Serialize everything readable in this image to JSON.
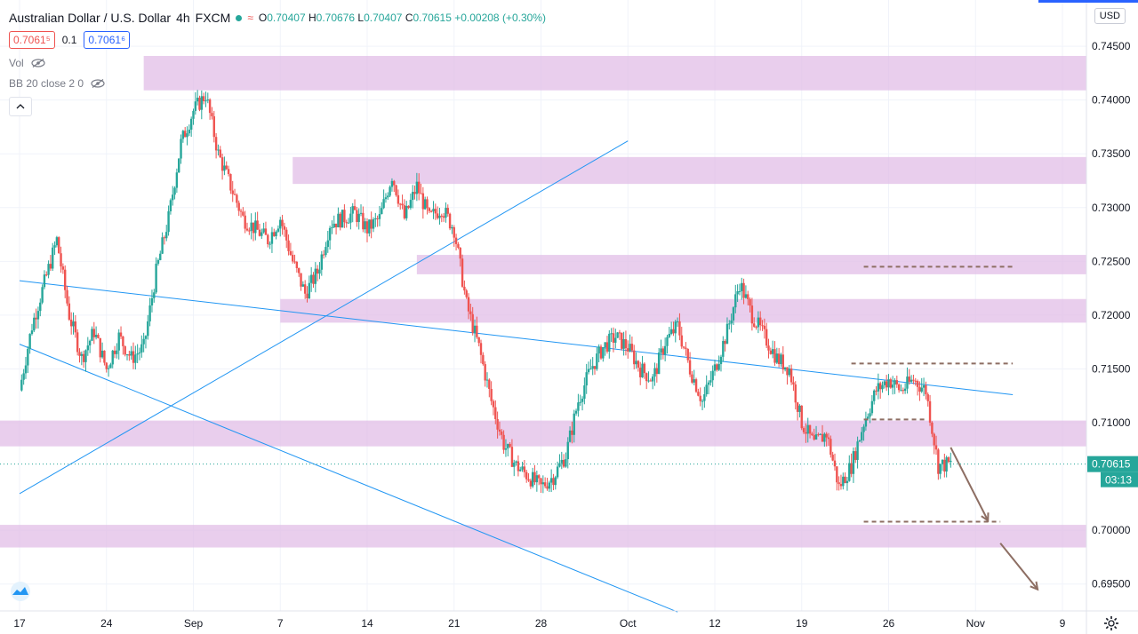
{
  "header": {
    "symbol_title": "Australian Dollar / U.S. Dollar",
    "interval": "4h",
    "exchange": "FXCM",
    "wave_icon": "≈",
    "open_label": "O",
    "open": "0.70407",
    "high_label": "H",
    "high": "0.70676",
    "low_label": "L",
    "low": "0.70407",
    "close_label": "C",
    "close": "0.70615",
    "change": "+0.00208 (+0.30%)"
  },
  "trade": {
    "sell_price": "0.7061⁵",
    "spread": "0.1",
    "buy_price": "0.7061⁶"
  },
  "indicators": [
    {
      "label": "Vol",
      "icon": "eye-off-icon"
    },
    {
      "label": "BB 20 close 2 0",
      "icon": "eye-off-icon"
    }
  ],
  "toolbar": {
    "collapse_icon": "chevron-up-icon",
    "currency": "USD",
    "logo_icon": "brand-logo-icon",
    "settings_icon": "gear-icon"
  },
  "colors": {
    "up": "#26a69a",
    "down": "#ef5350",
    "trendline": "#2196f3",
    "zone": "#e1bee7",
    "dashed": "#8d6e63",
    "arrow": "#8d6e63",
    "axis_text": "#131722"
  },
  "chart_data": {
    "type": "candlestick",
    "y_axis": {
      "position": "right",
      "ticks": [
        "0.74500",
        "0.74000",
        "0.73500",
        "0.73000",
        "0.72500",
        "0.72000",
        "0.71500",
        "0.71000",
        "0.70000",
        "0.69500"
      ],
      "range": [
        0.6925,
        0.7493
      ]
    },
    "x_axis": {
      "ticks": [
        "17",
        "24",
        "Sep",
        "7",
        "14",
        "21",
        "28",
        "Oct",
        "12",
        "19",
        "26",
        "Nov",
        "9"
      ],
      "range": [
        "2020-08-17",
        "2020-11-09"
      ]
    },
    "last_price": {
      "label": "0.70615",
      "value": 0.70615,
      "countdown": "03:13",
      "hidden_tick": "0.70500"
    },
    "grid": true,
    "zones": [
      {
        "from": "2020-08-27",
        "to": "right-edge",
        "low": 0.7409,
        "high": 0.7441
      },
      {
        "from": "2020-09-08",
        "to": "right-edge",
        "low": 0.7322,
        "high": 0.7347
      },
      {
        "from": "2020-09-18",
        "to": "right-edge",
        "low": 0.7238,
        "high": 0.7256
      },
      {
        "from": "2020-09-07",
        "to": "right-edge",
        "low": 0.7193,
        "high": 0.7215
      },
      {
        "from": "left-edge",
        "to": "right-edge",
        "low": 0.7078,
        "high": 0.7102
      },
      {
        "from": "left-edge",
        "to": "right-edge",
        "low": 0.6984,
        "high": 0.7005
      }
    ],
    "trendlines": [
      {
        "from": {
          "date": "2020-08-17",
          "price": 0.7232
        },
        "to": {
          "date": "2020-11-05",
          "price": 0.7126
        }
      },
      {
        "from": {
          "date": "2020-08-17",
          "price": 0.7173
        },
        "to": {
          "date": "2020-10-09",
          "price": 0.6924
        }
      },
      {
        "from": {
          "date": "2020-08-17",
          "price": 0.7034
        },
        "to": {
          "date": "2020-10-05",
          "price": 0.7362
        }
      }
    ],
    "levels": [
      {
        "from": "2020-10-24",
        "to": "2020-11-05",
        "price": 0.7245
      },
      {
        "from": "2020-10-23",
        "to": "2020-11-05",
        "price": 0.7155
      },
      {
        "from": "2020-10-24",
        "to": "2020-10-29",
        "price": 0.7103
      },
      {
        "from": "2020-10-24",
        "to": "2020-11-04",
        "price": 0.7008
      }
    ],
    "arrows": [
      {
        "from": {
          "date": "2020-10-31",
          "price": 0.7077
        },
        "to": {
          "date": "2020-11-03",
          "price": 0.7009
        }
      },
      {
        "from": {
          "date": "2020-11-04",
          "price": 0.6988
        },
        "to": {
          "date": "2020-11-07",
          "price": 0.6945
        }
      }
    ],
    "price_path": [
      [
        "2020-08-17",
        0.713
      ],
      [
        "2020-08-18",
        0.719
      ],
      [
        "2020-08-19",
        0.723
      ],
      [
        "2020-08-20",
        0.727
      ],
      [
        "2020-08-21",
        0.72
      ],
      [
        "2020-08-22",
        0.716
      ],
      [
        "2020-08-23",
        0.7185
      ],
      [
        "2020-08-24",
        0.715
      ],
      [
        "2020-08-25",
        0.718
      ],
      [
        "2020-08-26",
        0.716
      ],
      [
        "2020-08-27",
        0.717
      ],
      [
        "2020-08-28",
        0.724
      ],
      [
        "2020-08-29",
        0.729
      ],
      [
        "2020-08-30",
        0.736
      ],
      [
        "2020-08-31",
        0.739
      ],
      [
        "2020-09-01",
        0.7405
      ],
      [
        "2020-09-02",
        0.735
      ],
      [
        "2020-09-03",
        0.732
      ],
      [
        "2020-09-04",
        0.729
      ],
      [
        "2020-09-05",
        0.728
      ],
      [
        "2020-09-06",
        0.727
      ],
      [
        "2020-09-07",
        0.729
      ],
      [
        "2020-09-08",
        0.725
      ],
      [
        "2020-09-09",
        0.722
      ],
      [
        "2020-09-10",
        0.724
      ],
      [
        "2020-09-11",
        0.7285
      ],
      [
        "2020-09-12",
        0.729
      ],
      [
        "2020-09-13",
        0.7295
      ],
      [
        "2020-09-14",
        0.728
      ],
      [
        "2020-09-15",
        0.729
      ],
      [
        "2020-09-16",
        0.733
      ],
      [
        "2020-09-17",
        0.729
      ],
      [
        "2020-09-18",
        0.732
      ],
      [
        "2020-09-19",
        0.729
      ],
      [
        "2020-09-20",
        0.73
      ],
      [
        "2020-09-21",
        0.728
      ],
      [
        "2020-09-22",
        0.721
      ],
      [
        "2020-09-23",
        0.717
      ],
      [
        "2020-09-24",
        0.712
      ],
      [
        "2020-09-25",
        0.708
      ],
      [
        "2020-09-26",
        0.706
      ],
      [
        "2020-09-27",
        0.705
      ],
      [
        "2020-09-28",
        0.704
      ],
      [
        "2020-09-29",
        0.705
      ],
      [
        "2020-09-30",
        0.707
      ],
      [
        "2020-10-01",
        0.712
      ],
      [
        "2020-10-02",
        0.715
      ],
      [
        "2020-10-03",
        0.717
      ],
      [
        "2020-10-04",
        0.718
      ],
      [
        "2020-10-05",
        0.717
      ],
      [
        "2020-10-06",
        0.715
      ],
      [
        "2020-10-07",
        0.714
      ],
      [
        "2020-10-08",
        0.7175
      ],
      [
        "2020-10-09",
        0.719
      ],
      [
        "2020-10-10",
        0.715
      ],
      [
        "2020-10-11",
        0.712
      ],
      [
        "2020-10-12",
        0.715
      ],
      [
        "2020-10-13",
        0.7185
      ],
      [
        "2020-10-14",
        0.723
      ],
      [
        "2020-10-15",
        0.72
      ],
      [
        "2020-10-16",
        0.718
      ],
      [
        "2020-10-17",
        0.716
      ],
      [
        "2020-10-18",
        0.715
      ],
      [
        "2020-10-19",
        0.71
      ],
      [
        "2020-10-20",
        0.708
      ],
      [
        "2020-10-21",
        0.709
      ],
      [
        "2020-10-22",
        0.704
      ],
      [
        "2020-10-23",
        0.706
      ],
      [
        "2020-10-24",
        0.71
      ],
      [
        "2020-10-25",
        0.713
      ],
      [
        "2020-10-26",
        0.714
      ],
      [
        "2020-10-27",
        0.713
      ],
      [
        "2020-10-28",
        0.714
      ],
      [
        "2020-10-29",
        0.713
      ],
      [
        "2020-10-30",
        0.706
      ],
      [
        "2020-10-31",
        0.70615
      ]
    ]
  }
}
